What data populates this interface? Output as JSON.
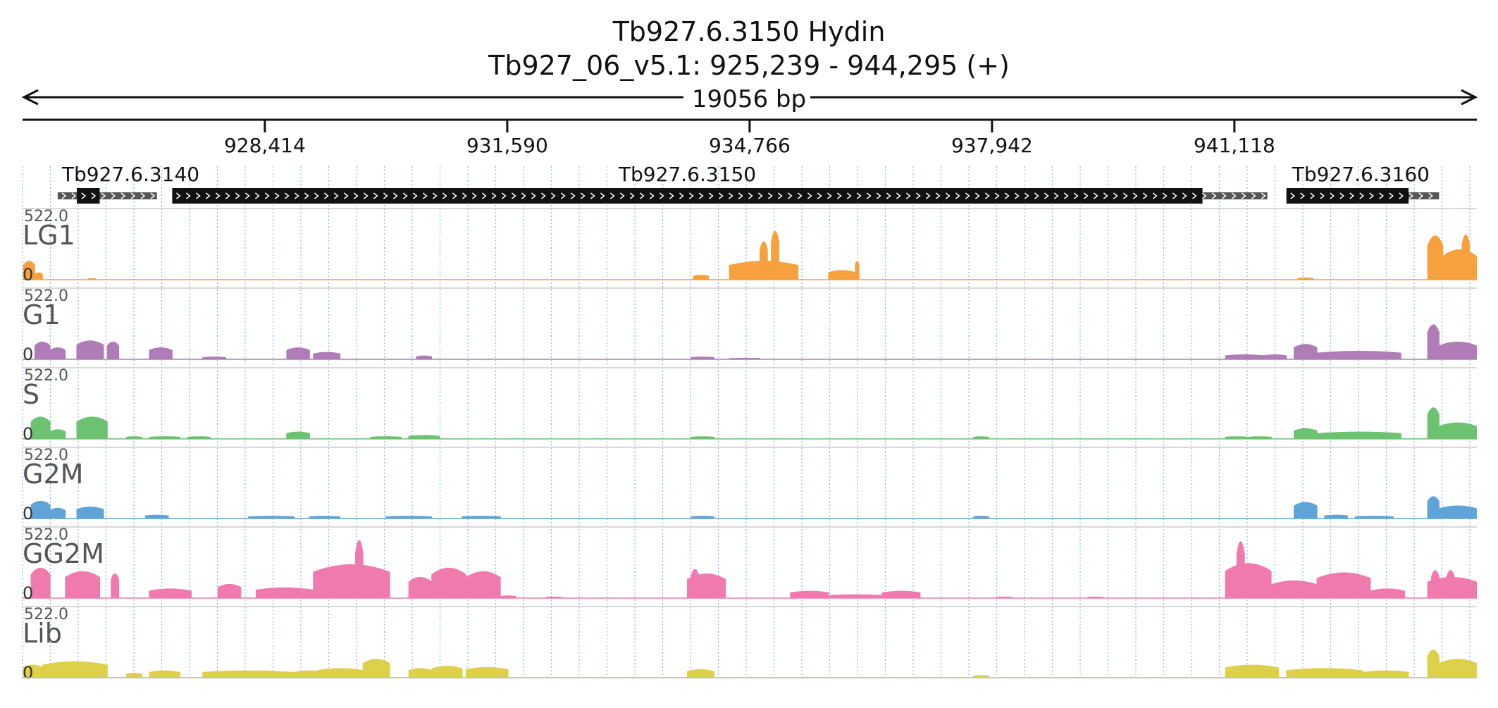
{
  "chart_data": {
    "type": "area",
    "title": "Tb927.6.3150  Hydin",
    "subtitle": "Tb927_06_v5.1: 925,239 - 944,295 (+)",
    "span_label": "19056 bp",
    "x_range": [
      925239,
      944295
    ],
    "ticks": [
      {
        "value": 928414,
        "label": "928,414"
      },
      {
        "value": 931590,
        "label": "931,590"
      },
      {
        "value": 934766,
        "label": "934,766"
      },
      {
        "value": 937942,
        "label": "937,942"
      },
      {
        "value": 941118,
        "label": "941,118"
      }
    ],
    "genes": [
      {
        "name": "Tb927.6.3140",
        "utr_start": 925700,
        "cds_start": 925950,
        "cds_end": 926250,
        "utr_end": 927000
      },
      {
        "name": "Tb927.6.3150",
        "utr_start": 927200,
        "cds_start": 927200,
        "cds_end": 940700,
        "utr_end": 941550
      },
      {
        "name": "Tb927.6.3160",
        "utr_start": 941800,
        "cds_start": 941800,
        "cds_end": 943400,
        "utr_end": 943800
      }
    ],
    "ylim": [
      0,
      522.0
    ],
    "y_max_label": "522.0",
    "y_zero_label": "0",
    "series": [
      {
        "name": "LG1",
        "color": "#f7a13e",
        "peaks": [
          [
            925250,
            925400,
            160
          ],
          [
            925400,
            925500,
            60
          ],
          [
            926100,
            926200,
            10
          ],
          [
            934030,
            934230,
            40
          ],
          [
            934500,
            935400,
            160
          ],
          [
            934900,
            935000,
            330
          ],
          [
            935050,
            935150,
            420
          ],
          [
            935800,
            936150,
            80
          ],
          [
            936150,
            936200,
            160
          ],
          [
            941950,
            942150,
            15
          ],
          [
            943650,
            943850,
            380
          ],
          [
            943850,
            944290,
            260
          ],
          [
            944100,
            944200,
            390
          ]
        ]
      },
      {
        "name": "G1",
        "color": "#b07cb8",
        "peaks": [
          [
            925400,
            925600,
            150
          ],
          [
            925600,
            925800,
            100
          ],
          [
            925950,
            926300,
            160
          ],
          [
            926350,
            926500,
            150
          ],
          [
            926900,
            927200,
            100
          ],
          [
            927600,
            927900,
            20
          ],
          [
            928700,
            929000,
            100
          ],
          [
            929050,
            929400,
            60
          ],
          [
            930400,
            930600,
            30
          ],
          [
            934000,
            934300,
            20
          ],
          [
            934500,
            934900,
            10
          ],
          [
            941000,
            941500,
            40
          ],
          [
            941500,
            941800,
            40
          ],
          [
            941900,
            942200,
            130
          ],
          [
            942200,
            943300,
            70
          ],
          [
            943650,
            943800,
            300
          ],
          [
            943800,
            944290,
            150
          ]
        ]
      },
      {
        "name": "S",
        "color": "#6cc26f",
        "peaks": [
          [
            925350,
            925600,
            190
          ],
          [
            925600,
            925800,
            80
          ],
          [
            925950,
            926350,
            190
          ],
          [
            926600,
            926800,
            20
          ],
          [
            926900,
            927300,
            20
          ],
          [
            927400,
            927700,
            20
          ],
          [
            928700,
            929000,
            60
          ],
          [
            929800,
            930200,
            20
          ],
          [
            930300,
            930700,
            30
          ],
          [
            934000,
            934300,
            20
          ],
          [
            937700,
            937900,
            20
          ],
          [
            941000,
            941300,
            20
          ],
          [
            941300,
            941600,
            20
          ],
          [
            941900,
            942200,
            90
          ],
          [
            942200,
            943300,
            60
          ],
          [
            943650,
            943800,
            270
          ],
          [
            943800,
            944290,
            140
          ]
        ]
      },
      {
        "name": "G2M",
        "color": "#5fa4d8",
        "peaks": [
          [
            925350,
            925600,
            150
          ],
          [
            925600,
            925800,
            90
          ],
          [
            925950,
            926300,
            100
          ],
          [
            926850,
            927150,
            30
          ],
          [
            928200,
            928800,
            20
          ],
          [
            929000,
            929400,
            20
          ],
          [
            930000,
            930600,
            20
          ],
          [
            931000,
            931500,
            20
          ],
          [
            934000,
            934300,
            20
          ],
          [
            937700,
            937900,
            20
          ],
          [
            941900,
            942200,
            140
          ],
          [
            942300,
            942600,
            30
          ],
          [
            942700,
            943200,
            20
          ],
          [
            943650,
            943800,
            190
          ],
          [
            943800,
            944290,
            110
          ]
        ]
      },
      {
        "name": "GG2M",
        "color": "#f07aae",
        "peaks": [
          [
            925350,
            925600,
            260
          ],
          [
            925800,
            926250,
            230
          ],
          [
            926400,
            926500,
            210
          ],
          [
            926900,
            927450,
            80
          ],
          [
            927800,
            928100,
            120
          ],
          [
            928300,
            929050,
            90
          ],
          [
            929050,
            930050,
            290
          ],
          [
            929600,
            929700,
            500
          ],
          [
            930300,
            930600,
            180
          ],
          [
            930600,
            931050,
            260
          ],
          [
            931050,
            931500,
            230
          ],
          [
            931500,
            931700,
            20
          ],
          [
            932100,
            932300,
            10
          ],
          [
            933950,
            934450,
            210
          ],
          [
            934000,
            934100,
            250
          ],
          [
            935300,
            935800,
            60
          ],
          [
            935800,
            936500,
            30
          ],
          [
            936500,
            937000,
            60
          ],
          [
            938000,
            938200,
            10
          ],
          [
            939200,
            939400,
            10
          ],
          [
            941000,
            941600,
            300
          ],
          [
            941150,
            941250,
            490
          ],
          [
            941600,
            942200,
            150
          ],
          [
            942200,
            942900,
            220
          ],
          [
            942900,
            943350,
            80
          ],
          [
            943650,
            944290,
            180
          ],
          [
            943700,
            943800,
            240
          ],
          [
            943900,
            944000,
            240
          ]
        ]
      },
      {
        "name": "Lib",
        "color": "#ddd04a",
        "peaks": [
          [
            925250,
            925500,
            110
          ],
          [
            925500,
            926350,
            140
          ],
          [
            926600,
            926800,
            40
          ],
          [
            926900,
            927300,
            60
          ],
          [
            927600,
            928800,
            60
          ],
          [
            928800,
            929200,
            60
          ],
          [
            929100,
            929700,
            80
          ],
          [
            929700,
            930050,
            160
          ],
          [
            930300,
            930600,
            80
          ],
          [
            930600,
            931000,
            100
          ],
          [
            931050,
            931600,
            90
          ],
          [
            933950,
            934300,
            70
          ],
          [
            937700,
            937900,
            20
          ],
          [
            941000,
            941700,
            110
          ],
          [
            941800,
            942800,
            80
          ],
          [
            942800,
            943400,
            60
          ],
          [
            943650,
            943800,
            240
          ],
          [
            943800,
            944290,
            160
          ]
        ]
      }
    ]
  }
}
